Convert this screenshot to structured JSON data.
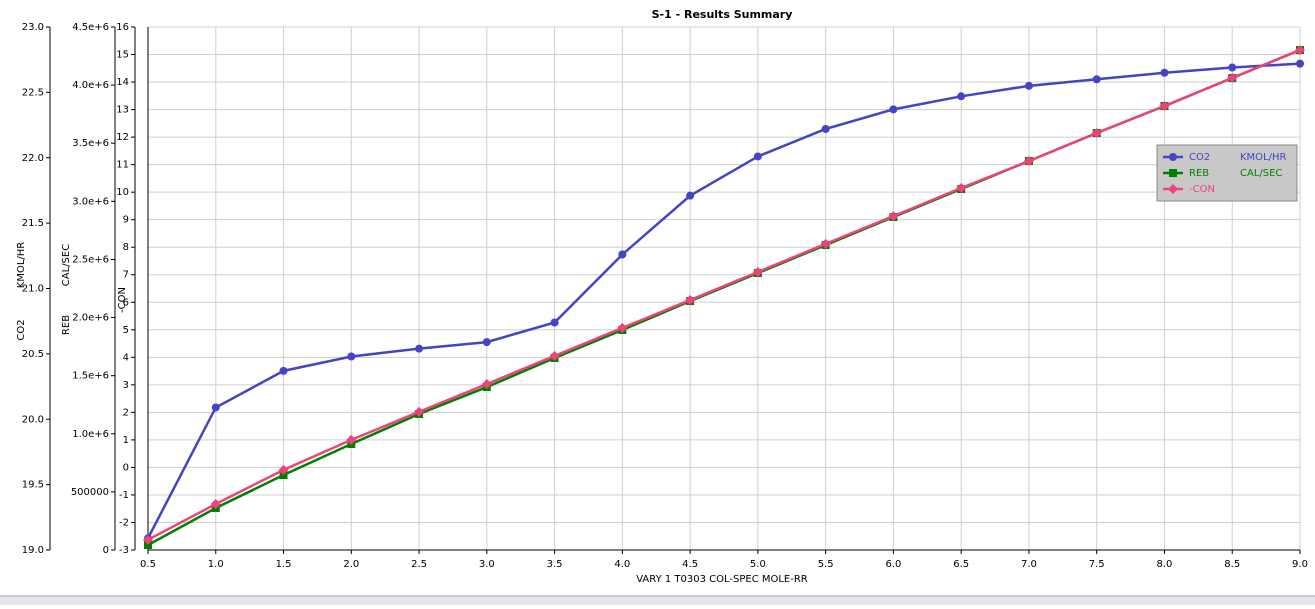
{
  "chart_data": {
    "type": "line",
    "title": "S-1 - Results Summary",
    "x_label": "VARY   1 T0303    COL-SPEC MOLE-RR",
    "x": [
      0.5,
      1.0,
      1.5,
      2.0,
      2.5,
      3.0,
      3.5,
      4.0,
      4.5,
      5.0,
      5.5,
      6.0,
      6.5,
      7.0,
      7.5,
      8.0,
      8.5,
      9.0
    ],
    "xlim": [
      0.5,
      9.0
    ],
    "xticks": [
      0.5,
      {
        "value": 1,
        "label": "1.0"
      },
      1.5,
      {
        "value": 2,
        "label": "2.0"
      },
      2.5,
      {
        "value": 3,
        "label": "3.0"
      },
      3.5,
      {
        "value": 4,
        "label": "4.0"
      },
      4.5,
      {
        "value": 5,
        "label": "5.0"
      },
      5.5,
      {
        "value": 6,
        "label": "6.0"
      },
      6.5,
      {
        "value": 7,
        "label": "7.0"
      },
      7.5,
      {
        "value": 8,
        "label": "8.0"
      },
      8.5,
      {
        "value": 9,
        "label": "9.0"
      }
    ],
    "y_label": [
      "CO2",
      "KMOL/HR"
    ],
    "ylim": [
      19,
      23
    ],
    "yticks": [
      {
        "value": 19,
        "label": "19.0"
      },
      19.5,
      {
        "value": 20,
        "label": "20.0"
      },
      20.5,
      {
        "value": 21,
        "label": "21.0"
      },
      21.5,
      {
        "value": 22,
        "label": "22.0"
      },
      22.5,
      {
        "value": 23,
        "label": "23.0"
      }
    ],
    "y2_label": [
      "REB",
      "CAL/SEC"
    ],
    "y2lim": [
      0,
      4500000
    ],
    "y2ticks": [
      0,
      500000,
      {
        "value": 1000000,
        "label": "1.0e+6"
      },
      {
        "value": 1500000,
        "label": "1.5e+6"
      },
      {
        "value": 2000000,
        "label": "2.0e+6"
      },
      {
        "value": 2500000,
        "label": "2.5e+6"
      },
      {
        "value": 3000000,
        "label": "3.0e+6"
      },
      {
        "value": 3500000,
        "label": "3.5e+6"
      },
      {
        "value": 4000000,
        "label": "4.0e+6"
      },
      {
        "value": 4500000,
        "label": "4.5e+6"
      }
    ],
    "y3_label": "-CON",
    "y3lim": [
      -3,
      16
    ],
    "y3ticks": [
      -3,
      -2,
      -1,
      0,
      1,
      2,
      3,
      4,
      5,
      6,
      7,
      8,
      9,
      10,
      11,
      12,
      13,
      14,
      15,
      16
    ],
    "grid": true,
    "legend": "upper right",
    "series": [
      {
        "name": "CO2",
        "unit": "KMOL/HR",
        "color": "#4444c4",
        "marker": "circle",
        "axis": "y",
        "values": [
          19.09,
          20.09,
          20.37,
          20.48,
          20.54,
          20.59,
          20.74,
          21.26,
          21.71,
          22.01,
          22.22,
          22.37,
          22.47,
          22.55,
          22.6,
          22.65,
          22.69,
          22.72
        ]
      },
      {
        "name": "REB",
        "unit": "CAL/SEC",
        "color": "#008000",
        "marker": "square",
        "axis": "y2",
        "values": [
          43000,
          361000,
          645000,
          912000,
          1170000,
          1402000,
          1652000,
          1893000,
          2142000,
          2383000,
          2624000,
          2865000,
          3106000,
          3347000,
          3588000,
          3820000,
          4061000,
          4302000
        ]
      },
      {
        "name": "-CON",
        "color": "#f0427a",
        "marker": "diamond",
        "axis": "y3",
        "values": [
          -2.63,
          -1.33,
          -0.09,
          1.0,
          2.02,
          3.03,
          4.05,
          5.07,
          6.08,
          7.1,
          8.12,
          9.13,
          10.15,
          11.13,
          12.15,
          13.13,
          14.15,
          15.16
        ]
      }
    ]
  }
}
